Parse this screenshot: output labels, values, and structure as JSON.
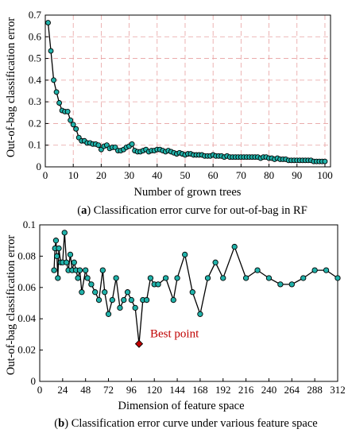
{
  "chart_data": [
    {
      "type": "line",
      "panel_label": "a",
      "caption": "Classification error curve for out-of-bag in RF",
      "xlabel": "Number of grown trees",
      "ylabel": "Out-of-bag classification error",
      "xlim": [
        0,
        102
      ],
      "ylim": [
        0,
        0.7
      ],
      "xticks": [
        0,
        10,
        20,
        30,
        40,
        50,
        60,
        70,
        80,
        90,
        100
      ],
      "yticks": [
        0,
        0.1,
        0.2,
        0.3,
        0.4,
        0.5,
        0.6,
        0.7
      ],
      "grid": true,
      "line_color": "#000000",
      "marker_color": "#20b2aa",
      "grid_color": "#e8a0a0",
      "series": [
        {
          "x": [
            1,
            2,
            3,
            4,
            5,
            6,
            7,
            8,
            9,
            10,
            11,
            12,
            13,
            14,
            15,
            16,
            17,
            18,
            19,
            20,
            21,
            22,
            23,
            24,
            25,
            26,
            27,
            28,
            29,
            30,
            31,
            32,
            33,
            34,
            35,
            36,
            37,
            38,
            39,
            40,
            41,
            42,
            43,
            44,
            45,
            46,
            47,
            48,
            49,
            50,
            51,
            52,
            53,
            54,
            55,
            56,
            57,
            58,
            59,
            60,
            61,
            62,
            63,
            64,
            65,
            66,
            67,
            68,
            69,
            70,
            71,
            72,
            73,
            74,
            75,
            76,
            77,
            78,
            79,
            80,
            81,
            82,
            83,
            84,
            85,
            86,
            87,
            88,
            89,
            90,
            91,
            92,
            93,
            94,
            95,
            96,
            97,
            98,
            99,
            100
          ],
          "y": [
            0.665,
            0.535,
            0.4,
            0.345,
            0.295,
            0.26,
            0.255,
            0.255,
            0.215,
            0.195,
            0.175,
            0.135,
            0.12,
            0.12,
            0.11,
            0.11,
            0.105,
            0.105,
            0.1,
            0.08,
            0.095,
            0.1,
            0.085,
            0.09,
            0.09,
            0.075,
            0.075,
            0.08,
            0.09,
            0.095,
            0.105,
            0.075,
            0.07,
            0.07,
            0.075,
            0.08,
            0.07,
            0.075,
            0.075,
            0.08,
            0.08,
            0.075,
            0.07,
            0.075,
            0.07,
            0.065,
            0.06,
            0.065,
            0.06,
            0.055,
            0.06,
            0.06,
            0.055,
            0.055,
            0.055,
            0.055,
            0.05,
            0.05,
            0.05,
            0.055,
            0.05,
            0.05,
            0.05,
            0.045,
            0.05,
            0.045,
            0.045,
            0.045,
            0.045,
            0.045,
            0.045,
            0.045,
            0.045,
            0.045,
            0.045,
            0.045,
            0.04,
            0.045,
            0.045,
            0.04,
            0.04,
            0.035,
            0.04,
            0.035,
            0.035,
            0.035,
            0.03,
            0.03,
            0.03,
            0.03,
            0.03,
            0.03,
            0.03,
            0.03,
            0.03,
            0.025,
            0.025,
            0.025,
            0.025,
            0.025
          ]
        }
      ]
    },
    {
      "type": "line",
      "panel_label": "b",
      "caption": "Classification error curve under various feature space",
      "xlabel": "Dimension of feature space",
      "ylabel": "Out-of-bag classification error",
      "xlim": [
        0,
        312
      ],
      "ylim": [
        0,
        0.1
      ],
      "xticks": [
        0,
        24,
        48,
        72,
        96,
        120,
        144,
        168,
        192,
        216,
        240,
        264,
        288,
        312
      ],
      "yticks": [
        0,
        0.02,
        0.04,
        0.06,
        0.08,
        0.1
      ],
      "grid": false,
      "line_color": "#000000",
      "marker_color": "#20b2aa",
      "best_point_color": "#c00000",
      "series": [
        {
          "x": [
            15,
            16,
            17,
            18,
            19,
            20,
            22,
            24,
            26,
            28,
            30,
            32,
            34,
            36,
            38,
            40,
            42,
            44,
            48,
            50,
            54,
            58,
            62,
            66,
            68,
            72,
            76,
            80,
            84,
            88,
            92,
            96,
            100,
            104,
            108,
            112,
            116,
            120,
            124,
            132,
            140,
            144,
            152,
            160,
            168,
            176,
            184,
            192,
            204,
            216,
            228,
            240,
            252,
            264,
            276,
            288,
            300,
            312
          ],
          "y": [
            0.071,
            0.085,
            0.09,
            0.08,
            0.066,
            0.085,
            0.076,
            0.076,
            0.095,
            0.076,
            0.071,
            0.081,
            0.071,
            0.076,
            0.071,
            0.066,
            0.071,
            0.057,
            0.071,
            0.066,
            0.062,
            0.057,
            0.052,
            0.071,
            0.057,
            0.043,
            0.052,
            0.066,
            0.047,
            0.052,
            0.057,
            0.052,
            0.047,
            0.024,
            0.052,
            0.052,
            0.066,
            0.062,
            0.062,
            0.066,
            0.052,
            0.066,
            0.081,
            0.057,
            0.043,
            0.066,
            0.076,
            0.066,
            0.086,
            0.066,
            0.071,
            0.066,
            0.062,
            0.062,
            0.066,
            0.071,
            0.071,
            0.066
          ],
          "best_index": 33
        }
      ],
      "annotation": "Best point"
    }
  ]
}
